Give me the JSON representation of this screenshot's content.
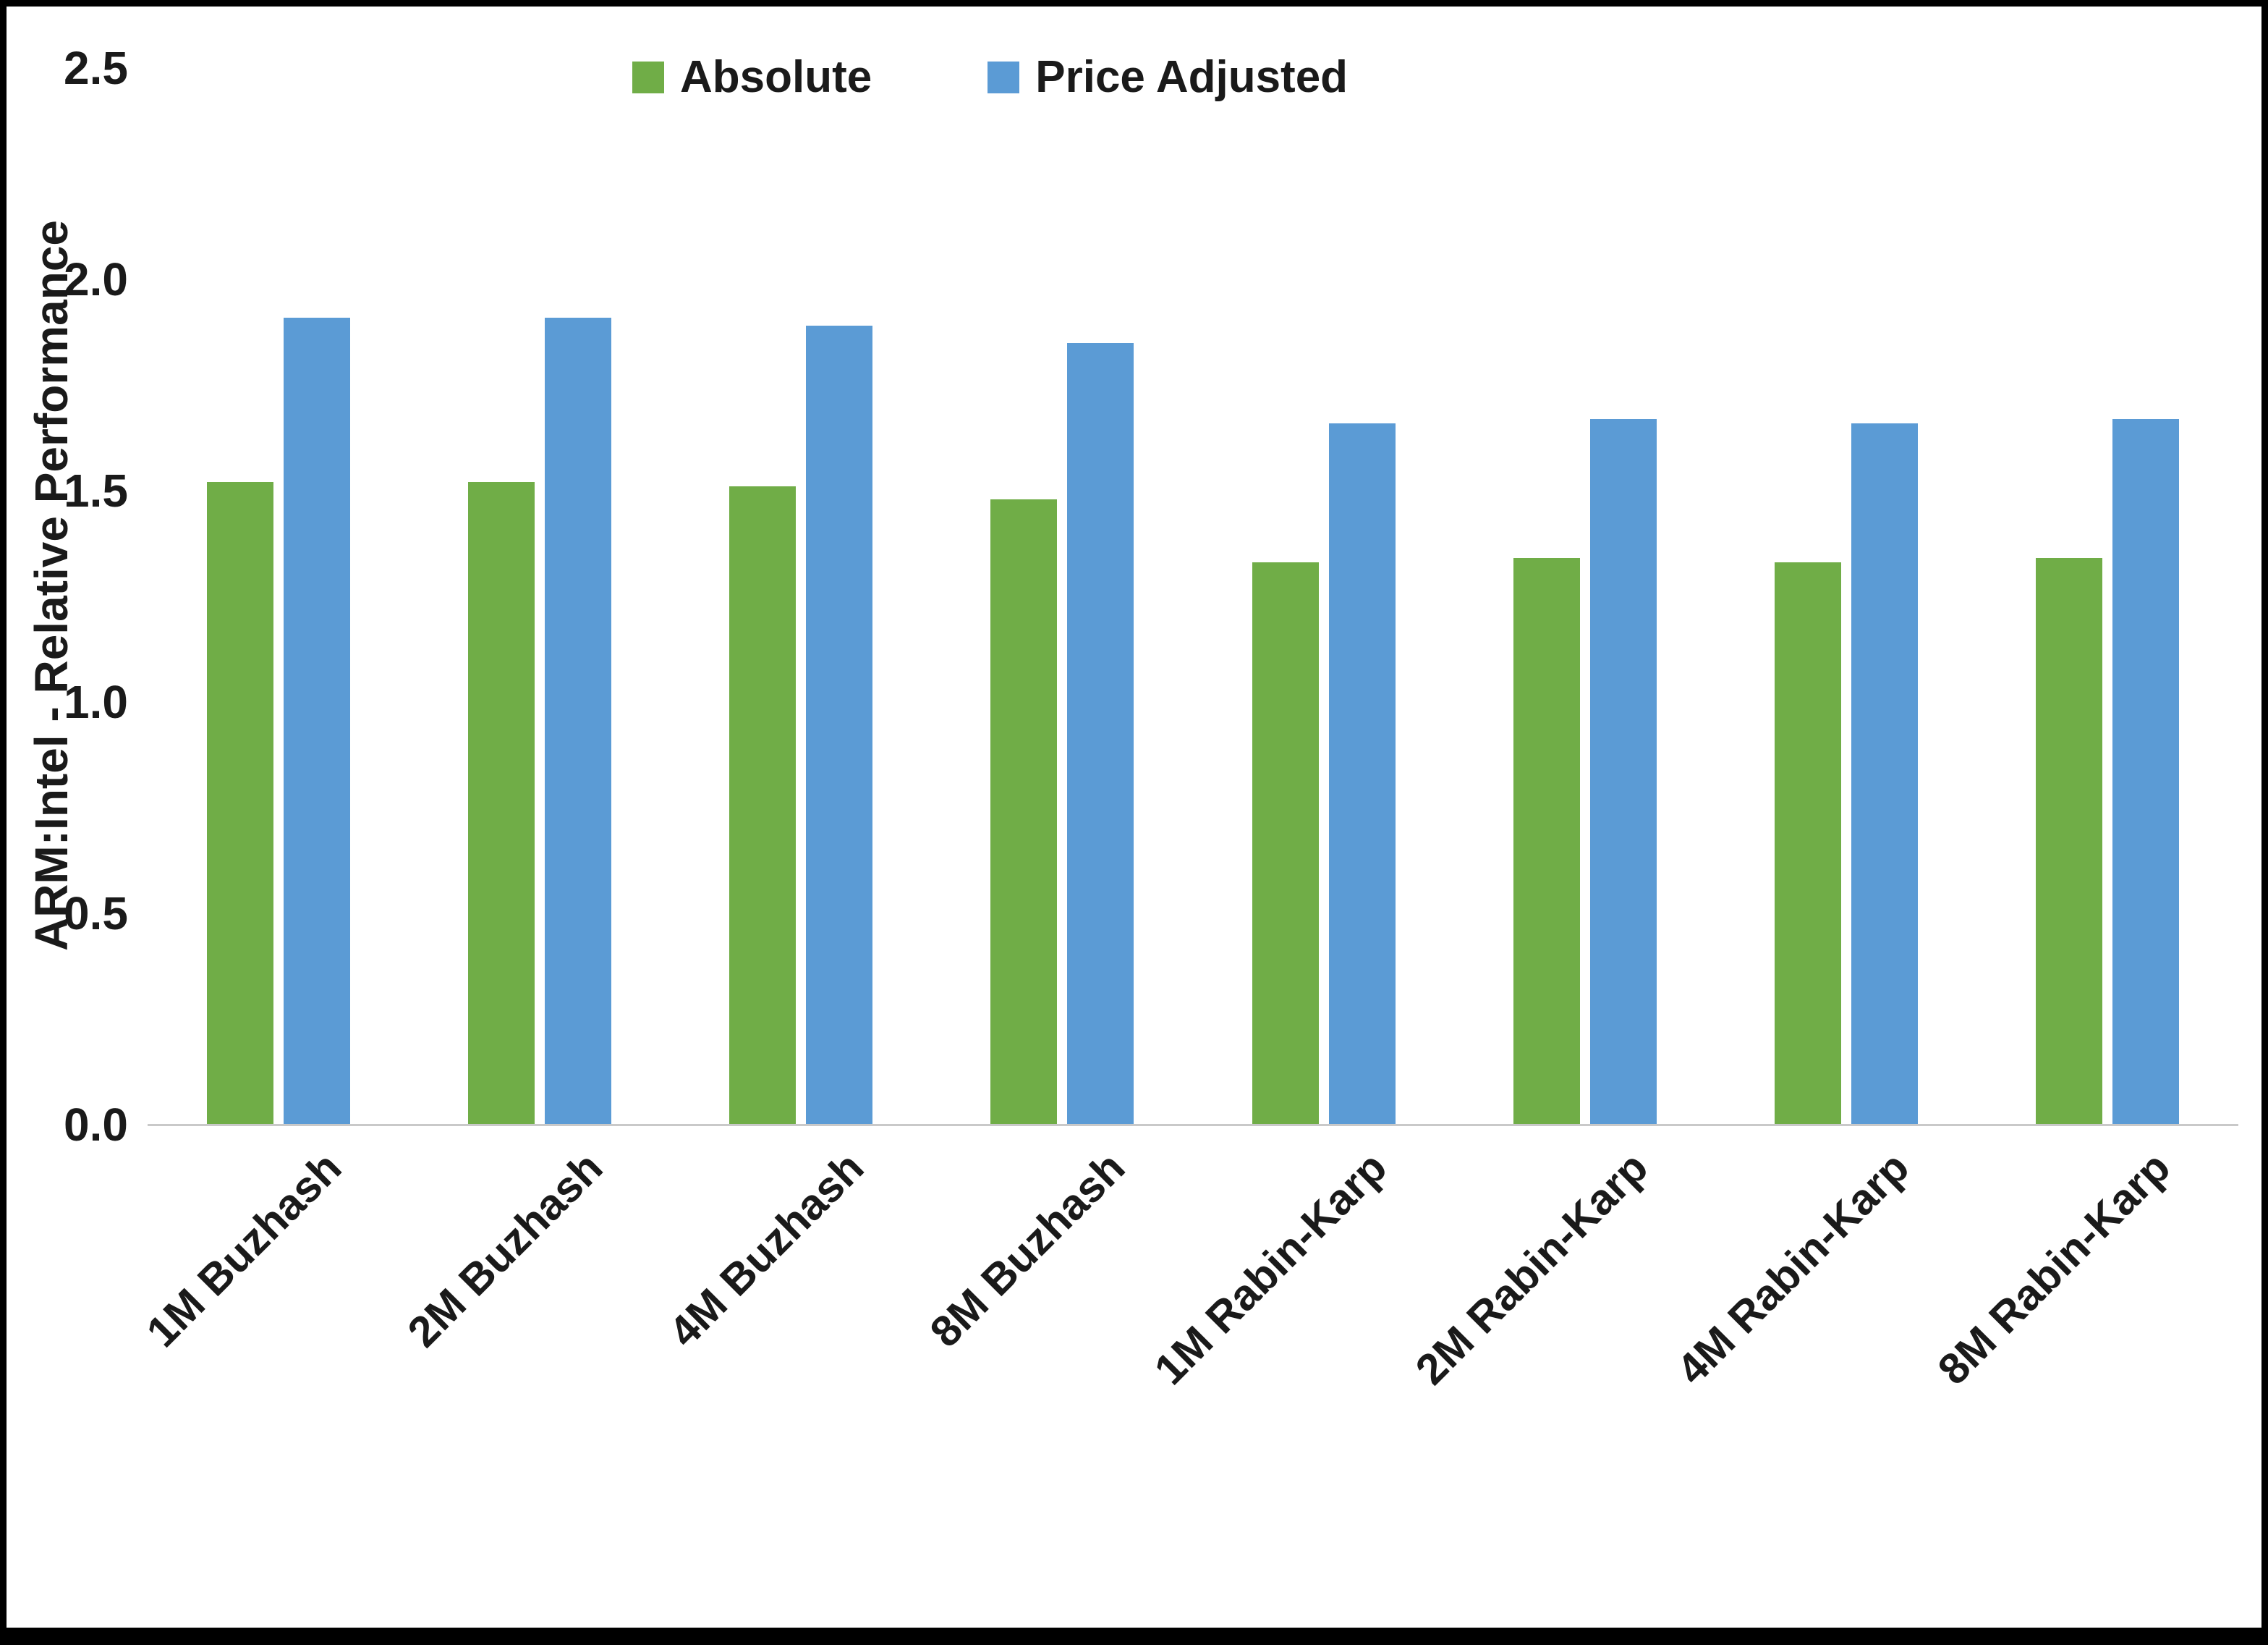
{
  "chart_data": {
    "type": "bar",
    "title": "",
    "xlabel": "",
    "ylabel": "ARM:Intel - Relative Performance",
    "ylim": [
      0,
      2.5
    ],
    "yticks": [
      0,
      0.5,
      1,
      1.5,
      2,
      2.5
    ],
    "ytick_decimals": 1,
    "grid": false,
    "legend_position": "top-center",
    "categories": [
      "1M Buzhash",
      "2M Buzhash",
      "4M Buzhash",
      "8M Buzhash",
      "1M Rabin-Karp",
      "2M Rabin-Karp",
      "4M Rabin-Karp",
      "8M Rabin-Karp"
    ],
    "series": [
      {
        "name": "Absolute",
        "color": "#70AD47",
        "values": [
          1.52,
          1.52,
          1.51,
          1.48,
          1.33,
          1.34,
          1.33,
          1.34
        ]
      },
      {
        "name": "Price Adjusted",
        "color": "#5B9BD5",
        "values": [
          1.91,
          1.91,
          1.89,
          1.85,
          1.66,
          1.67,
          1.66,
          1.67
        ]
      }
    ]
  }
}
